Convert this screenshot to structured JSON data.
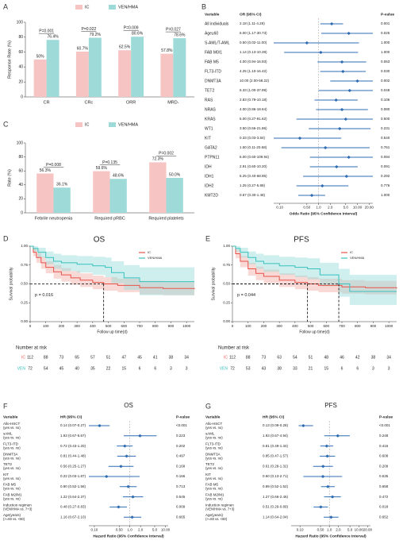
{
  "chart_data": [
    {
      "type": "bar",
      "panel": "A",
      "ylabel": "Response Rate (%)",
      "categories": [
        "CR",
        "CRc",
        "ORR",
        "MRD-"
      ],
      "series": [
        {
          "name": "IC",
          "color": "#f6c4c3",
          "values": [
            50,
            60.7,
            62.5,
            57.8
          ],
          "value_labels": [
            "50%",
            "60.7%",
            "62.5%",
            "57.8%"
          ]
        },
        {
          "name": "VEN/HMA",
          "color": "#9edbd8",
          "values": [
            76.4,
            79.2,
            80.6,
            78.6
          ],
          "value_labels": [
            "76.4%",
            "79.2%",
            "80.6%",
            "78.6%"
          ]
        }
      ],
      "p_values": [
        "P=0.001",
        "P=0.022",
        "P=0.009",
        "P=0.027"
      ],
      "ylim": [
        0,
        100
      ],
      "yticks": [
        0,
        20,
        40,
        60,
        80,
        100
      ],
      "legend": "top"
    },
    {
      "type": "forest",
      "panel": "B",
      "headers": [
        "Variable",
        "OR (95% CI)",
        "P-value"
      ],
      "labels": [
        "All individuals",
        "Age≥60",
        "S-AML/T-AML",
        "FAB M0/1",
        "FAB M5",
        "FLT3-ITD",
        "DNMT3A",
        "TET2",
        "RAS",
        "NRAS",
        "KRAS",
        "WT1",
        "KIT",
        "GATA2",
        "PTPN11",
        "IDH",
        "IDH1",
        "IDH2",
        "KMT2D"
      ],
      "values": [
        2.18,
        6.0,
        0.5,
        1.14,
        4.0,
        4.25,
        10.0,
        6.33,
        2.83,
        4.0,
        5.0,
        3.5,
        0.33,
        1.5,
        6.0,
        2.91,
        5.25,
        1.25,
        0.67
      ],
      "lower": [
        1.11,
        1.17,
        0.02,
        0.13,
        0.94,
        1.1,
        2.0,
        1.0,
        0.79,
        0.86,
        0.27,
        0.56,
        0.03,
        0.11,
        0.6,
        0.6,
        0.4,
        0.27,
        0.3
      ],
      "upper": [
        4.28,
        30.73,
        11.0,
        10.39,
        16.93,
        16.42,
        58.22,
        37.99,
        10.18,
        18.64,
        91.62,
        21.86,
        3.84,
        20.68,
        109.94,
        10.2,
        68.95,
        5.88,
        1.48
      ],
      "value_labels": [
        "2.18 (1.11-4.28)",
        "6.00 (1.17-30.73)",
        "0.50 (0.02-11.00)",
        "1.14 (0.13-10.39)",
        "4.00 (0.94-16.93)",
        "4.25 (1.10-16.42)",
        "10.00 (2.00-58.22)",
        "6.33 (1.00-37.99)",
        "2.83 (0.79-10.18)",
        "4.00 (0.86-18.64)",
        "5.00 (0.27-91.62)",
        "3.50 (0.56-21.86)",
        "0.33 (0.03-3.84)",
        "1.50 (0.11-20.68)",
        "6.00 (0.60-109.94)",
        "2.91 (0.60-10.20)",
        "5.25 (0.40-68.95)",
        "1.25 (0.27-5.88)",
        "0.67 (0.30-1.48)"
      ],
      "p_values": [
        "0.001",
        "0.025",
        "1.000",
        "1.000",
        "0.063",
        "0.030",
        "0.002",
        "0.048",
        "0.106",
        "0.080",
        "0.500",
        "0.231",
        "0.540",
        "0.761",
        "0.094",
        "0.091",
        "0.292",
        "0.776",
        "1.000"
      ],
      "xlabel": "Odds Ratio (95% Confidence Interval)",
      "xscale": "log",
      "xlim": [
        0.07,
        25
      ],
      "xticks": [
        {
          "value": 0.1,
          "label": "0.10"
        },
        {
          "value": 0.5,
          "label": "0.50"
        },
        {
          "value": 1,
          "label": "1.0"
        },
        {
          "value": 2,
          "label": "2.0"
        },
        {
          "value": 5,
          "label": "5.0"
        },
        {
          "value": 10,
          "label": "10.00"
        },
        {
          "value": 20,
          "label": "20.00"
        }
      ],
      "color": "#2f6db3"
    },
    {
      "type": "bar",
      "panel": "C",
      "ylabel": "Rate (%)",
      "categories": [
        "Febrile neutropenia",
        "Required pRBC",
        "Required platelets"
      ],
      "series": [
        {
          "name": "IC",
          "color": "#f6c4c3",
          "values": [
            56.3,
            59.6,
            72.3
          ],
          "value_labels": [
            "56.3%",
            "59.6%",
            "72.3%"
          ]
        },
        {
          "name": "VEN/HMA",
          "color": "#9edbd8",
          "values": [
            36.1,
            48.6,
            50.0
          ],
          "value_labels": [
            "36.1%",
            "48.6%",
            "50.0%"
          ]
        }
      ],
      "p_values": [
        "P=0.008",
        "P=0.135",
        "P=0.002"
      ],
      "ylim": [
        0,
        100
      ],
      "yticks": [
        0,
        20,
        40,
        60,
        80,
        100
      ],
      "legend": "top"
    },
    {
      "type": "km",
      "panel": "D",
      "title": "OS",
      "ylabel": "Survival probability",
      "xlabel": "Follow up time(d)",
      "xlim": [
        0,
        1050
      ],
      "xticks": [
        0,
        100,
        200,
        300,
        400,
        500,
        600,
        700,
        800,
        900,
        1000
      ],
      "ylim": [
        0,
        1
      ],
      "yticks": [
        {
          "value": 0,
          "label": "0.00"
        },
        {
          "value": 0.25,
          "label": "0.25"
        },
        {
          "value": 0.5,
          "label": "0.50"
        },
        {
          "value": 0.75,
          "label": "0.75"
        },
        {
          "value": 1,
          "label": "1.00"
        }
      ],
      "legend": "upper right",
      "annotation": "p = 0.016",
      "series": [
        {
          "name": "IC",
          "color": "#e8534a",
          "band": "#f2aaa3",
          "median": 470,
          "x": [
            0,
            20,
            40,
            70,
            100,
            150,
            200,
            260,
            320,
            400,
            470,
            560,
            700,
            850,
            1050
          ],
          "values": [
            1,
            0.92,
            0.85,
            0.78,
            0.72,
            0.66,
            0.62,
            0.58,
            0.55,
            0.52,
            0.5,
            0.48,
            0.45,
            0.44,
            0.43
          ],
          "lower": [
            1,
            0.87,
            0.78,
            0.7,
            0.64,
            0.57,
            0.53,
            0.49,
            0.46,
            0.43,
            0.41,
            0.39,
            0.36,
            0.35,
            0.33
          ],
          "upper": [
            1,
            0.97,
            0.91,
            0.86,
            0.8,
            0.75,
            0.71,
            0.67,
            0.64,
            0.61,
            0.59,
            0.57,
            0.54,
            0.53,
            0.53
          ]
        },
        {
          "name": "VEN/HMA",
          "color": "#37c1bd",
          "band": "#95dcd9",
          "x": [
            0,
            20,
            50,
            100,
            150,
            200,
            300,
            400,
            480,
            520,
            600,
            700,
            1050
          ],
          "values": [
            1,
            0.97,
            0.92,
            0.85,
            0.8,
            0.78,
            0.76,
            0.74,
            0.72,
            0.65,
            0.58,
            0.53,
            0.53
          ],
          "lower": [
            1,
            0.93,
            0.85,
            0.76,
            0.7,
            0.67,
            0.65,
            0.62,
            0.59,
            0.51,
            0.42,
            0.35,
            0.35
          ],
          "upper": [
            1,
            1,
            0.98,
            0.93,
            0.9,
            0.88,
            0.87,
            0.86,
            0.85,
            0.8,
            0.75,
            0.72,
            0.72
          ]
        }
      ],
      "risk_title": "Number at risk",
      "risk": [
        {
          "name": "IC",
          "color": "#e8534a",
          "values": [
            112,
            88,
            73,
            65,
            57,
            51,
            47,
            45,
            41,
            38,
            34
          ]
        },
        {
          "name": "VEN",
          "color": "#37c1bd",
          "values": [
            72,
            54,
            45,
            40,
            35,
            22,
            15,
            6,
            6,
            3,
            3
          ]
        }
      ]
    },
    {
      "type": "km",
      "panel": "E",
      "title": "PFS",
      "ylabel": "Survival probability",
      "xlabel": "Follow up time(d)",
      "xlim": [
        0,
        1050
      ],
      "xticks": [
        0,
        100,
        200,
        300,
        400,
        500,
        600,
        700,
        800,
        900,
        1000
      ],
      "ylim": [
        0,
        1
      ],
      "yticks": [
        {
          "value": 0,
          "label": "0.00"
        },
        {
          "value": 0.25,
          "label": "0.25"
        },
        {
          "value": 0.5,
          "label": "0.50"
        },
        {
          "value": 0.75,
          "label": "0.75"
        },
        {
          "value": 1,
          "label": "1.00"
        }
      ],
      "legend": "upper right",
      "annotation": "p = 0.044",
      "series": [
        {
          "name": "IC",
          "color": "#e8534a",
          "band": "#f2aaa3",
          "median": 480,
          "x": [
            0,
            20,
            50,
            100,
            150,
            200,
            300,
            400,
            480,
            550,
            700,
            850,
            1050
          ],
          "values": [
            1,
            0.9,
            0.8,
            0.7,
            0.64,
            0.6,
            0.55,
            0.52,
            0.5,
            0.48,
            0.46,
            0.45,
            0.44
          ],
          "lower": [
            1,
            0.84,
            0.72,
            0.61,
            0.55,
            0.51,
            0.46,
            0.43,
            0.41,
            0.39,
            0.37,
            0.36,
            0.34
          ],
          "upper": [
            1,
            0.95,
            0.87,
            0.78,
            0.73,
            0.69,
            0.64,
            0.61,
            0.59,
            0.57,
            0.55,
            0.54,
            0.54
          ]
        },
        {
          "name": "VEN/HMA",
          "color": "#37c1bd",
          "band": "#95dcd9",
          "median": 680,
          "x": [
            0,
            20,
            50,
            100,
            150,
            200,
            300,
            400,
            480,
            560,
            680,
            750,
            1050
          ],
          "values": [
            1,
            0.97,
            0.92,
            0.85,
            0.8,
            0.77,
            0.74,
            0.72,
            0.7,
            0.62,
            0.5,
            0.4,
            0.4
          ],
          "lower": [
            1,
            0.93,
            0.85,
            0.76,
            0.7,
            0.66,
            0.62,
            0.59,
            0.56,
            0.47,
            0.33,
            0.22,
            0.22
          ],
          "upper": [
            1,
            1,
            0.98,
            0.93,
            0.9,
            0.88,
            0.86,
            0.85,
            0.84,
            0.78,
            0.7,
            0.62,
            0.62
          ]
        }
      ],
      "risk_title": "Number at risk",
      "risk": [
        {
          "name": "IC",
          "color": "#e8534a",
          "values": [
            112,
            88,
            73,
            63,
            54,
            51,
            48,
            46,
            42,
            38,
            34
          ]
        },
        {
          "name": "VEN",
          "color": "#37c1bd",
          "values": [
            72,
            53,
            43,
            38,
            33,
            21,
            15,
            6,
            6,
            3,
            3
          ]
        }
      ]
    },
    {
      "type": "forest",
      "panel": "F",
      "title": "OS",
      "headers": [
        "Variable",
        "HR (95% CI)",
        "P-value"
      ],
      "labels": [
        [
          "Allo-HSCT",
          "(yes vs. no)"
        ],
        [
          "sAML",
          "(yes vs. no)"
        ],
        [
          "FLT3-ITD",
          "(yes vs. no)"
        ],
        [
          "DNMT3A",
          "(yes vs. no)"
        ],
        [
          "TET2",
          "(yes vs. no)"
        ],
        [
          "KIT",
          "(yes vs. no)"
        ],
        [
          "FAB M5",
          "(yes vs. no)"
        ],
        [
          "FAB M2/M1",
          "(yes vs. no)"
        ],
        [
          "Induction regimen",
          "(VEN/HMA vs. 7+3)"
        ],
        [
          "Age(years)",
          "(>=60 vs. <60)"
        ]
      ],
      "values": [
        0.14,
        1.93,
        0.72,
        0.81,
        0.56,
        0.22,
        0.9,
        1.22,
        0.48,
        1.16
      ],
      "lower": [
        0.07,
        0.67,
        0.43,
        0.44,
        0.25,
        0.03,
        0.52,
        0.64,
        0.27,
        0.67
      ],
      "upper": [
        0.27,
        5.67,
        1.2,
        1.48,
        1.27,
        1.87,
        1.56,
        2.37,
        0.83,
        2.1
      ],
      "value_labels": [
        "0.14 (0.07-0.27)",
        "1.93 (0.67-5.67)",
        "0.72 (0.43-1.20)",
        "0.81 (0.44-1.48)",
        "0.56 (0.25-1.27)",
        "0.22 (0.03-1.87)",
        "0.90 (0.52-1.56)",
        "1.22 (0.64-2.37)",
        "0.48 (0.27-0.83)",
        "1.16 (0.67-2.10)"
      ],
      "p_values": [
        "<0.001",
        "0.223",
        "0.202",
        "0.497",
        "0.168",
        "0.166",
        "0.713",
        "0.545",
        "0.009",
        "0.665"
      ],
      "xlabel": "Hazard Ratio (95% Confidence Interval)",
      "xscale": "log",
      "xlim": [
        0.07,
        12
      ],
      "xticks": [
        {
          "value": 0.1,
          "label": "0.10"
        },
        {
          "value": 0.5,
          "label": "0.50"
        },
        {
          "value": 1,
          "label": "1.0"
        },
        {
          "value": 2,
          "label": "2.0"
        },
        {
          "value": 5,
          "label": "5.0"
        },
        {
          "value": 10,
          "label": "10.00"
        }
      ],
      "color": "#2f6db3"
    },
    {
      "type": "forest",
      "panel": "G",
      "title": "PFS",
      "headers": [
        "Variable",
        "HR (95% CI)",
        "P-value"
      ],
      "labels": [
        [
          "Allo-HSCT",
          "(yes vs. no)"
        ],
        [
          "sAML",
          "(yes vs. no)"
        ],
        [
          "FLT3-ITD",
          "(yes vs. no)"
        ],
        [
          "DNMT3A",
          "(yes vs. no)"
        ],
        [
          "TET2",
          "(yes vs. no)"
        ],
        [
          "KIT",
          "(yes vs. no)"
        ],
        [
          "FAB M5",
          "(yes vs. no)"
        ],
        [
          "FAB M2/M1",
          "(yes vs. no)"
        ],
        [
          "Induction regimen",
          "(VEN/HMA vs. 7+3)"
        ],
        [
          "Age(years)",
          "(>=60 vs. <60)"
        ]
      ],
      "values": [
        0.13,
        1.93,
        0.81,
        0.85,
        0.61,
        0.6,
        0.89,
        1.27,
        0.51,
        1.14
      ],
      "lower": [
        0.09,
        0.67,
        0.49,
        0.47,
        0.28,
        0.13,
        0.52,
        0.66,
        0.29,
        0.64
      ],
      "upper": [
        0.28,
        4.94,
        1.34,
        1.57,
        1.32,
        2.71,
        1.52,
        2.46,
        0.89,
        2.04
      ],
      "value_labels": [
        "0.13 (0.09-0.28)",
        "1.93 (0.67-4.94)",
        "0.81 (0.49-1.34)",
        "0.85 (0.47-1.57)",
        "0.61 (0.28-1.32)",
        "0.60 (0.13-2.71)",
        "0.89 (0.52-1.52)",
        "1.27 (0.66-2.46)",
        "0.51 (0.29-0.89)",
        "1.14 (0.64-2.04)"
      ],
      "p_values": [
        "<0.001",
        "0.248",
        "0.416",
        "0.608",
        "0.209",
        "0.535",
        "0.658",
        "0.472",
        "0.018",
        "0.652"
      ],
      "xlabel": "Hazard Ratio (95% Confidence Interval)",
      "xscale": "log",
      "xlim": [
        0.05,
        25
      ],
      "xticks": [
        {
          "value": 0.1,
          "label": "0.10"
        },
        {
          "value": 0.5,
          "label": "0.50"
        },
        {
          "value": 1,
          "label": "1.0"
        },
        {
          "value": 2,
          "label": "2.0"
        },
        {
          "value": 5,
          "label": "5.0"
        },
        {
          "value": 10,
          "label": "10.00"
        },
        {
          "value": 20,
          "label": "20.00"
        }
      ],
      "color": "#2f6db3"
    }
  ]
}
